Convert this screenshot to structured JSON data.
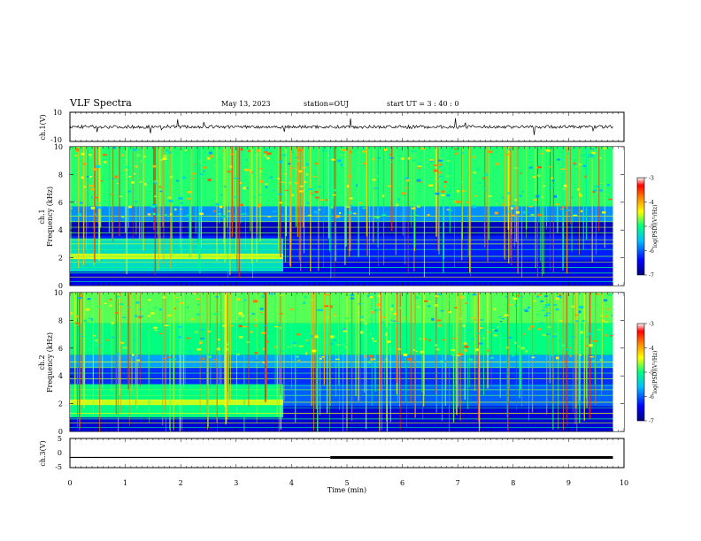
{
  "header": {
    "title": "VLF Spectra",
    "date": "May 13, 2023",
    "station": "station=OUJ",
    "start": "start  UT =   3 : 40 : 0"
  },
  "panels": {
    "ch1_wave": {
      "ylabel": "ch.1(V)",
      "ticks": [
        "10",
        "-10"
      ]
    },
    "ch1_spec": {
      "ylabel_top": "ch.1",
      "ylabel": "Frequency (kHz)",
      "ticks": [
        "10",
        "8",
        "6",
        "4",
        "2",
        "0"
      ]
    },
    "ch2_spec": {
      "ylabel_top": "ch.2",
      "ylabel": "Frequency (kHz)",
      "ticks": [
        "10",
        "8",
        "6",
        "4",
        "2",
        "0"
      ]
    },
    "ch3_wave": {
      "ylabel": "ch.3(V)",
      "ticks": [
        "5",
        "0",
        "-5"
      ]
    },
    "xaxis": {
      "label": "Time (min)",
      "ticks": [
        "0",
        "1",
        "2",
        "3",
        "4",
        "5",
        "6",
        "7",
        "8",
        "9",
        "10"
      ]
    }
  },
  "colorbars": [
    {
      "label": "log(PSD)(V²/Hz)",
      "ticks": [
        "-3",
        "-4",
        "-5",
        "-6",
        "-7"
      ]
    },
    {
      "label": "log(PSD)(V²/Hz)",
      "ticks": [
        "-3",
        "-4",
        "-5",
        "-6",
        "-7"
      ]
    }
  ],
  "colors": {
    "cmap": [
      "#000080",
      "#0000ff",
      "#00c0ff",
      "#00ff80",
      "#ffff00",
      "#ff8000",
      "#ff0000",
      "#ffffff"
    ]
  },
  "chart_data": {
    "type": "heatmap",
    "x_range_min": [
      0,
      10
    ],
    "data_end_min": 9.8,
    "ch1_ylim_V": [
      -10,
      10
    ],
    "ch3_ylim_V": [
      -5,
      5
    ],
    "freq_range_kHz": [
      0,
      10
    ],
    "colorbar_range": [
      -7,
      -3
    ],
    "ch3_level_V": -1.5,
    "ch3_thick_segment_start_min": 4.7,
    "regime_change_min": 3.85
  }
}
